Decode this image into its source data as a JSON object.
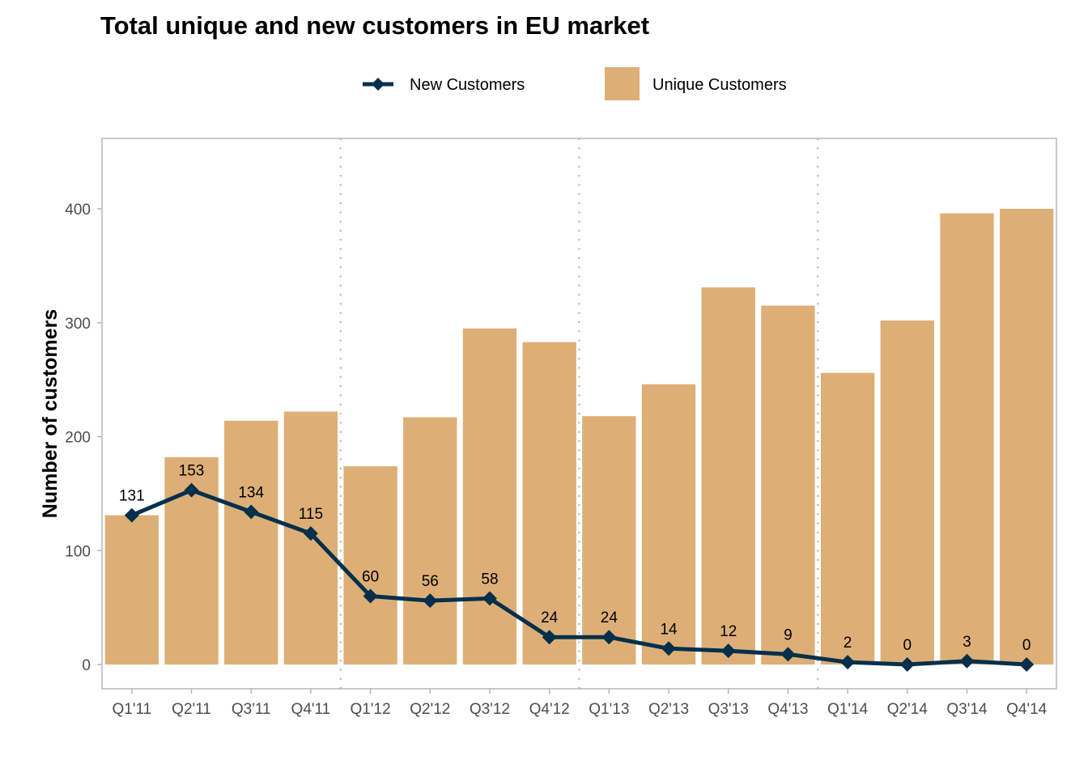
{
  "chart_data": {
    "type": "bar",
    "title": "Total unique and new customers in EU market",
    "xlabel": "",
    "ylabel": "Number of customers",
    "ylim": [
      -22,
      460
    ],
    "yticks": [
      0,
      100,
      200,
      300,
      400
    ],
    "ytick_labels": [
      "0",
      "100",
      "200",
      "300",
      "400"
    ],
    "grid": false,
    "legend_position": "top-center",
    "categories": [
      "Q1'11",
      "Q2'11",
      "Q3'11",
      "Q4'11",
      "Q1'12",
      "Q2'12",
      "Q3'12",
      "Q4'12",
      "Q1'13",
      "Q2'13",
      "Q3'13",
      "Q4'13",
      "Q1'14",
      "Q2'14",
      "Q3'14",
      "Q4'14"
    ],
    "year_separators_after": [
      "Q4'11",
      "Q4'12",
      "Q4'13"
    ],
    "series": [
      {
        "name": "Unique Customers",
        "type": "bar",
        "color": "#DDAF77",
        "values": [
          131,
          182,
          214,
          222,
          174,
          217,
          295,
          283,
          218,
          246,
          331,
          315,
          256,
          302,
          396,
          400
        ]
      },
      {
        "name": "New Customers",
        "type": "line",
        "marker": "diamond",
        "color": "#05304C",
        "values": [
          131,
          153,
          134,
          115,
          60,
          56,
          58,
          24,
          24,
          14,
          12,
          9,
          2,
          0,
          3,
          0
        ],
        "data_labels": [
          "131",
          "153",
          "134",
          "115",
          "60",
          "56",
          "58",
          "24",
          "24",
          "14",
          "12",
          "9",
          "2",
          "0",
          "3",
          "0"
        ]
      }
    ],
    "legend": [
      {
        "label": "New Customers",
        "key": "line-diamond",
        "color": "#05304C"
      },
      {
        "label": "Unique Customers",
        "key": "box",
        "color": "#DDAF77"
      }
    ]
  }
}
